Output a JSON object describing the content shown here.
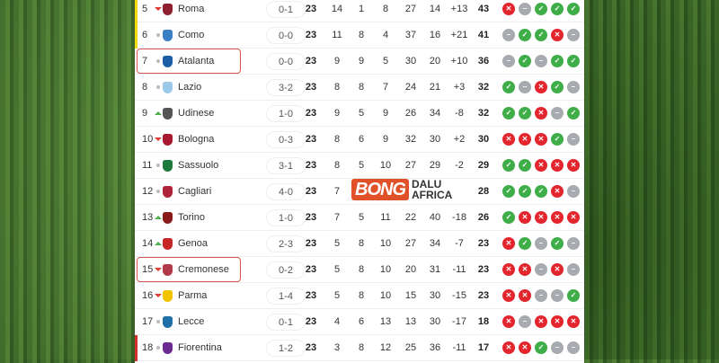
{
  "colors": {
    "win": "#3fae49",
    "loss": "#e3262d",
    "draw": "#a7abaf",
    "europe_stripe": "#f5d90a",
    "relegation_stripe": "#d32f2f",
    "highlight": "#d9534f"
  },
  "watermark": {
    "brand_left": "BONG",
    "brand_right_top": "DALU",
    "brand_right_bottom": "AFRICA"
  },
  "rows": [
    {
      "pos": "5",
      "trend": "down",
      "team": "Roma",
      "logo": "#8e1f2f",
      "last": "0-1",
      "p": "23",
      "w": "14",
      "d": "1",
      "l": "8",
      "gf": "27",
      "ga": "14",
      "gd": "+13",
      "pts": "43",
      "form": [
        "L",
        "D",
        "W",
        "W",
        "W"
      ],
      "stripe": "europe"
    },
    {
      "pos": "6",
      "trend": "same",
      "team": "Como",
      "logo": "#3b7fc4",
      "last": "0-0",
      "p": "23",
      "w": "11",
      "d": "8",
      "l": "4",
      "gf": "37",
      "ga": "16",
      "gd": "+21",
      "pts": "41",
      "form": [
        "D",
        "W",
        "W",
        "L",
        "D"
      ],
      "stripe": "europe"
    },
    {
      "pos": "7",
      "trend": "same",
      "team": "Atalanta",
      "logo": "#1c5fa8",
      "last": "0-0",
      "p": "23",
      "w": "9",
      "d": "9",
      "l": "5",
      "gf": "30",
      "ga": "20",
      "gd": "+10",
      "pts": "36",
      "form": [
        "D",
        "W",
        "D",
        "W",
        "W"
      ],
      "highlight": true
    },
    {
      "pos": "8",
      "trend": "same",
      "team": "Lazio",
      "logo": "#9cc9e8",
      "last": "3-2",
      "p": "23",
      "w": "8",
      "d": "8",
      "l": "7",
      "gf": "24",
      "ga": "21",
      "gd": "+3",
      "pts": "32",
      "form": [
        "W",
        "D",
        "L",
        "W",
        "D"
      ]
    },
    {
      "pos": "9",
      "trend": "up",
      "team": "Udinese",
      "logo": "#555555",
      "last": "1-0",
      "p": "23",
      "w": "9",
      "d": "5",
      "l": "9",
      "gf": "26",
      "ga": "34",
      "gd": "-8",
      "pts": "32",
      "form": [
        "W",
        "W",
        "L",
        "D",
        "W"
      ]
    },
    {
      "pos": "10",
      "trend": "down",
      "team": "Bologna",
      "logo": "#a6192e",
      "last": "0-3",
      "p": "23",
      "w": "8",
      "d": "6",
      "l": "9",
      "gf": "32",
      "ga": "30",
      "gd": "+2",
      "pts": "30",
      "form": [
        "L",
        "L",
        "L",
        "W",
        "D"
      ]
    },
    {
      "pos": "11",
      "trend": "same",
      "team": "Sassuolo",
      "logo": "#1e7a3c",
      "last": "3-1",
      "p": "23",
      "w": "8",
      "d": "5",
      "l": "10",
      "gf": "27",
      "ga": "29",
      "gd": "-2",
      "pts": "29",
      "form": [
        "W",
        "W",
        "L",
        "L",
        "L"
      ]
    },
    {
      "pos": "12",
      "trend": "same",
      "team": "Cagliari",
      "logo": "#b0243a",
      "last": "4-0",
      "p": "23",
      "w": "7",
      "d": "",
      "l": "",
      "gf": "",
      "ga": "",
      "gd": "",
      "pts": "28",
      "form": [
        "W",
        "W",
        "W",
        "L",
        "D"
      ]
    },
    {
      "pos": "13",
      "trend": "up",
      "team": "Torino",
      "logo": "#8b1a1a",
      "last": "1-0",
      "p": "23",
      "w": "7",
      "d": "5",
      "l": "11",
      "gf": "22",
      "ga": "40",
      "gd": "-18",
      "pts": "26",
      "form": [
        "W",
        "L",
        "L",
        "L",
        "L"
      ]
    },
    {
      "pos": "14",
      "trend": "up",
      "team": "Genoa",
      "logo": "#c62828",
      "last": "2-3",
      "p": "23",
      "w": "5",
      "d": "8",
      "l": "10",
      "gf": "27",
      "ga": "34",
      "gd": "-7",
      "pts": "23",
      "form": [
        "L",
        "W",
        "D",
        "W",
        "D"
      ]
    },
    {
      "pos": "15",
      "trend": "down",
      "team": "Cremonese",
      "logo": "#b23a48",
      "last": "0-2",
      "p": "23",
      "w": "5",
      "d": "8",
      "l": "10",
      "gf": "20",
      "ga": "31",
      "gd": "-11",
      "pts": "23",
      "form": [
        "L",
        "L",
        "D",
        "L",
        "D"
      ],
      "highlight": true
    },
    {
      "pos": "16",
      "trend": "down",
      "team": "Parma",
      "logo": "#f2c500",
      "last": "1-4",
      "p": "23",
      "w": "5",
      "d": "8",
      "l": "10",
      "gf": "15",
      "ga": "30",
      "gd": "-15",
      "pts": "23",
      "form": [
        "L",
        "L",
        "D",
        "D",
        "W"
      ]
    },
    {
      "pos": "17",
      "trend": "same",
      "team": "Lecce",
      "logo": "#1f6fa8",
      "last": "0-1",
      "p": "23",
      "w": "4",
      "d": "6",
      "l": "13",
      "gf": "13",
      "ga": "30",
      "gd": "-17",
      "pts": "18",
      "form": [
        "L",
        "D",
        "L",
        "L",
        "L"
      ]
    },
    {
      "pos": "18",
      "trend": "same",
      "team": "Fiorentina",
      "logo": "#6a2c91",
      "last": "1-2",
      "p": "23",
      "w": "3",
      "d": "8",
      "l": "12",
      "gf": "25",
      "ga": "36",
      "gd": "-11",
      "pts": "17",
      "form": [
        "L",
        "L",
        "W",
        "D",
        "D"
      ],
      "stripe": "relegation"
    }
  ]
}
